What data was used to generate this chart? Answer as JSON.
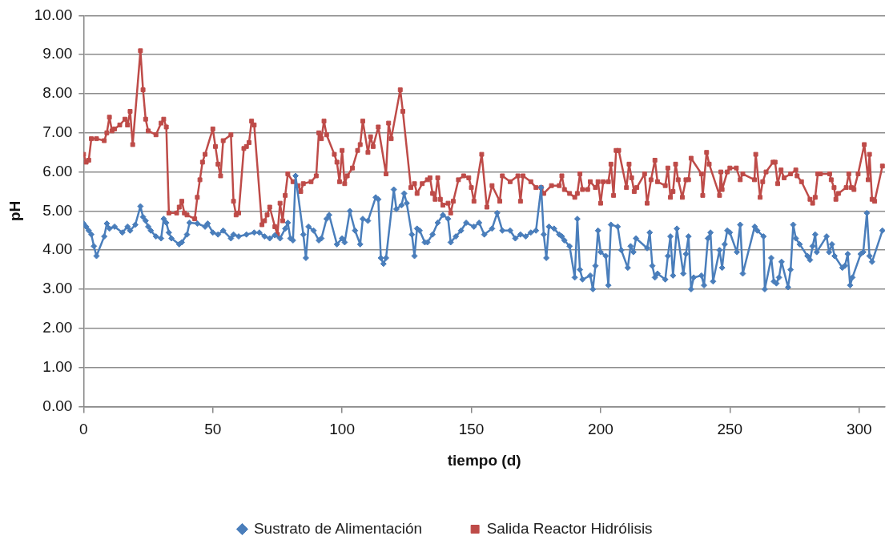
{
  "chart_data": {
    "type": "line",
    "xlabel": "tiempo (d)",
    "ylabel": "pH",
    "xlim": [
      0,
      310
    ],
    "xticks": [
      0,
      50,
      100,
      150,
      200,
      250,
      300
    ],
    "ylim": [
      0,
      10
    ],
    "yticks": [
      {
        "value": 0,
        "label": "0.00"
      },
      {
        "value": 1,
        "label": "1.00"
      },
      {
        "value": 2,
        "label": "2.00"
      },
      {
        "value": 3,
        "label": "3.00"
      },
      {
        "value": 4,
        "label": "4.00"
      },
      {
        "value": 5,
        "label": "5.00"
      },
      {
        "value": 6,
        "label": "6.00"
      },
      {
        "value": 7,
        "label": "7.00"
      },
      {
        "value": 8,
        "label": "8.00"
      },
      {
        "value": 9,
        "label": "9.00"
      },
      {
        "value": 10,
        "label": "10.00"
      }
    ],
    "grid": "y",
    "legend": "bottom",
    "line_style": "solid",
    "series": [
      {
        "name": "Sustrato de Alimentación",
        "color": "#4a7ebb",
        "marker": "diamond",
        "x": [
          0,
          1,
          2,
          3,
          4,
          5,
          8,
          9,
          10,
          12,
          15,
          17,
          18,
          20,
          22,
          23,
          24,
          25,
          26,
          28,
          30,
          31,
          32,
          33,
          34,
          37,
          38,
          40,
          41,
          44,
          47,
          48,
          50,
          52,
          54,
          57,
          58,
          60,
          63,
          66,
          68,
          70,
          72,
          74,
          76,
          78,
          79,
          80,
          81,
          82,
          85,
          86,
          87,
          89,
          91,
          92,
          94,
          95,
          98,
          100,
          101,
          103,
          105,
          107,
          108,
          110,
          113,
          114,
          115,
          116,
          117,
          120,
          121,
          123,
          124,
          125,
          127,
          128,
          129,
          130,
          132,
          133,
          135,
          137,
          139,
          141,
          142,
          144,
          146,
          148,
          151,
          153,
          155,
          158,
          160,
          162,
          165,
          167,
          169,
          171,
          173,
          175,
          177,
          178,
          179,
          180,
          182,
          184,
          185,
          186,
          188,
          190,
          191,
          192,
          193,
          196,
          197,
          198,
          199,
          200,
          202,
          203,
          204,
          206.6,
          208,
          210.5,
          211.6,
          212.7,
          213.7,
          218,
          219,
          220,
          221,
          222,
          225,
          226,
          227,
          228,
          229.5,
          232,
          233,
          234,
          235,
          236,
          239,
          240,
          241.5,
          242.5,
          243.5,
          246,
          247,
          248,
          249,
          250,
          252.7,
          254,
          255,
          259.6,
          260.6,
          263,
          263.5,
          266,
          267,
          268,
          269,
          270,
          272.5,
          273.5,
          274.5,
          275.5,
          277,
          280,
          281,
          282,
          283,
          283.6,
          287.4,
          288.4,
          289.5,
          290.5,
          293.5,
          294.5,
          295.6,
          296.5,
          297.4,
          300.6,
          301.6,
          303,
          304,
          305,
          309
        ],
        "values": [
          4.68,
          4.6,
          4.5,
          4.4,
          4.1,
          3.85,
          4.35,
          4.68,
          4.55,
          4.6,
          4.45,
          4.6,
          4.5,
          4.65,
          5.12,
          4.85,
          4.75,
          4.6,
          4.5,
          4.35,
          4.3,
          4.8,
          4.7,
          4.45,
          4.3,
          4.15,
          4.2,
          4.4,
          4.7,
          4.68,
          4.6,
          4.68,
          4.45,
          4.4,
          4.5,
          4.3,
          4.4,
          4.35,
          4.4,
          4.45,
          4.45,
          4.35,
          4.3,
          4.38,
          4.3,
          4.55,
          4.7,
          4.3,
          4.25,
          5.9,
          4.4,
          3.8,
          4.6,
          4.5,
          4.25,
          4.3,
          4.8,
          4.9,
          4.15,
          4.3,
          4.2,
          5.0,
          4.5,
          4.15,
          4.8,
          4.75,
          5.35,
          5.3,
          3.8,
          3.65,
          3.8,
          5.55,
          5.05,
          5.15,
          5.45,
          5.2,
          4.4,
          3.85,
          4.55,
          4.5,
          4.2,
          4.2,
          4.4,
          4.7,
          4.9,
          4.8,
          4.2,
          4.35,
          4.5,
          4.7,
          4.6,
          4.7,
          4.4,
          4.55,
          4.95,
          4.5,
          4.5,
          4.3,
          4.4,
          4.35,
          4.45,
          4.5,
          5.6,
          4.4,
          3.8,
          4.6,
          4.55,
          4.4,
          4.35,
          4.25,
          4.1,
          3.3,
          4.8,
          3.5,
          3.25,
          3.35,
          3.0,
          3.6,
          4.5,
          3.95,
          3.85,
          3.1,
          4.65,
          4.6,
          4.0,
          3.55,
          4.1,
          3.95,
          4.3,
          4.05,
          4.45,
          3.6,
          3.3,
          3.4,
          3.25,
          3.85,
          4.35,
          3.35,
          4.55,
          3.4,
          3.9,
          4.35,
          3.0,
          3.3,
          3.35,
          3.1,
          4.3,
          4.45,
          3.2,
          4.0,
          3.55,
          4.15,
          4.5,
          4.45,
          3.95,
          4.65,
          3.4,
          4.6,
          4.5,
          4.35,
          3.0,
          3.8,
          3.2,
          3.15,
          3.3,
          3.7,
          3.05,
          3.5,
          4.65,
          4.3,
          4.15,
          3.85,
          3.75,
          4.1,
          4.4,
          3.95,
          4.35,
          3.95,
          4.15,
          3.85,
          3.55,
          3.6,
          3.9,
          3.1,
          3.3,
          3.9,
          3.95,
          4.95,
          3.85,
          3.7,
          4.5
        ]
      },
      {
        "name": "Salida Reactor Hidrólisis",
        "color": "#be4b48",
        "marker": "square",
        "x": [
          0,
          1,
          2,
          3,
          5,
          8,
          9,
          10,
          11,
          12,
          14,
          16,
          17,
          18,
          19,
          22,
          23,
          24,
          25,
          28,
          30,
          31,
          32,
          33,
          36,
          37,
          38,
          39,
          40,
          43,
          44,
          45,
          46,
          47,
          50,
          51,
          52,
          53,
          54,
          57,
          58,
          59,
          60,
          62,
          63,
          64,
          65,
          66,
          69,
          70,
          71,
          72,
          74,
          75,
          76,
          77,
          78,
          79,
          81,
          83,
          84,
          85,
          88,
          90,
          91,
          92,
          93,
          94,
          97,
          98,
          99,
          100,
          101,
          102,
          104,
          106,
          107,
          108,
          110,
          111,
          112,
          114,
          117,
          118,
          119,
          122.5,
          123.5,
          126.6,
          128,
          129,
          131,
          133,
          134,
          135,
          136,
          137,
          138,
          139,
          141,
          142,
          143,
          145,
          147,
          149,
          150,
          151,
          154,
          156,
          158,
          161,
          162,
          165,
          168,
          169,
          170,
          173,
          175,
          177,
          178,
          181,
          184,
          185,
          186,
          188,
          190,
          191,
          192,
          193,
          195,
          196,
          198,
          199,
          200,
          201,
          203,
          204,
          205,
          206,
          207,
          210,
          211,
          212,
          213,
          214,
          217,
          218,
          219.5,
          221,
          222,
          225,
          226,
          227,
          228,
          229,
          230,
          231.6,
          233,
          234,
          235,
          239,
          239.5,
          241,
          242,
          246,
          246.5,
          247,
          249,
          250,
          252.5,
          254,
          255,
          259.5,
          260,
          261.7,
          262.7,
          264,
          266.7,
          267.5,
          268.5,
          269.8,
          271,
          273.5,
          275.5,
          276,
          277.7,
          281,
          282,
          283,
          284,
          285,
          288.6,
          289.2,
          290.3,
          291,
          292,
          295,
          296,
          297,
          298,
          299.6,
          302,
          303.5,
          304,
          305,
          306,
          309
        ],
        "values": [
          6.45,
          6.25,
          6.3,
          6.85,
          6.85,
          6.8,
          7.0,
          7.4,
          7.05,
          7.1,
          7.2,
          7.35,
          7.2,
          7.55,
          6.7,
          9.1,
          8.1,
          7.35,
          7.05,
          6.95,
          7.25,
          7.35,
          7.15,
          4.95,
          4.95,
          5.1,
          5.25,
          4.95,
          4.9,
          4.8,
          5.35,
          5.8,
          6.25,
          6.45,
          7.1,
          6.65,
          6.2,
          5.9,
          6.8,
          6.95,
          5.25,
          4.9,
          4.95,
          6.6,
          6.65,
          6.75,
          7.3,
          7.2,
          4.65,
          4.75,
          4.9,
          5.1,
          4.6,
          4.4,
          5.2,
          4.75,
          5.4,
          5.95,
          5.75,
          5.65,
          5.5,
          5.7,
          5.75,
          5.9,
          7.0,
          6.85,
          7.3,
          6.95,
          6.45,
          6.25,
          5.75,
          6.55,
          5.7,
          5.9,
          6.1,
          6.55,
          6.7,
          7.3,
          6.5,
          6.9,
          6.65,
          7.15,
          5.95,
          7.25,
          6.85,
          8.1,
          7.55,
          5.6,
          5.7,
          5.45,
          5.7,
          5.8,
          5.85,
          5.45,
          5.3,
          5.85,
          5.3,
          5.15,
          5.2,
          4.95,
          5.25,
          5.8,
          5.9,
          5.85,
          5.6,
          5.25,
          6.45,
          5.1,
          5.65,
          5.25,
          5.9,
          5.75,
          5.9,
          5.25,
          5.9,
          5.75,
          5.6,
          5.6,
          5.45,
          5.65,
          5.65,
          5.9,
          5.55,
          5.45,
          5.35,
          5.45,
          5.95,
          5.55,
          5.55,
          5.75,
          5.6,
          5.75,
          5.2,
          5.75,
          5.75,
          6.2,
          5.4,
          6.55,
          6.55,
          5.6,
          6.2,
          5.85,
          5.5,
          5.6,
          5.95,
          5.2,
          5.8,
          6.3,
          5.75,
          5.65,
          6.1,
          5.35,
          5.5,
          6.2,
          5.8,
          5.35,
          5.8,
          5.8,
          6.35,
          5.95,
          5.4,
          6.5,
          6.2,
          5.4,
          6.0,
          5.55,
          6.0,
          6.1,
          6.1,
          5.8,
          5.95,
          5.8,
          6.45,
          5.35,
          5.75,
          6.0,
          6.25,
          6.25,
          5.7,
          6.05,
          5.85,
          5.95,
          6.05,
          5.9,
          5.75,
          5.3,
          5.2,
          5.35,
          5.95,
          5.95,
          5.95,
          5.8,
          5.6,
          5.3,
          5.45,
          5.6,
          5.95,
          5.6,
          5.55,
          5.95,
          6.7,
          5.8,
          6.45,
          5.3,
          5.25,
          6.15
        ]
      }
    ]
  }
}
